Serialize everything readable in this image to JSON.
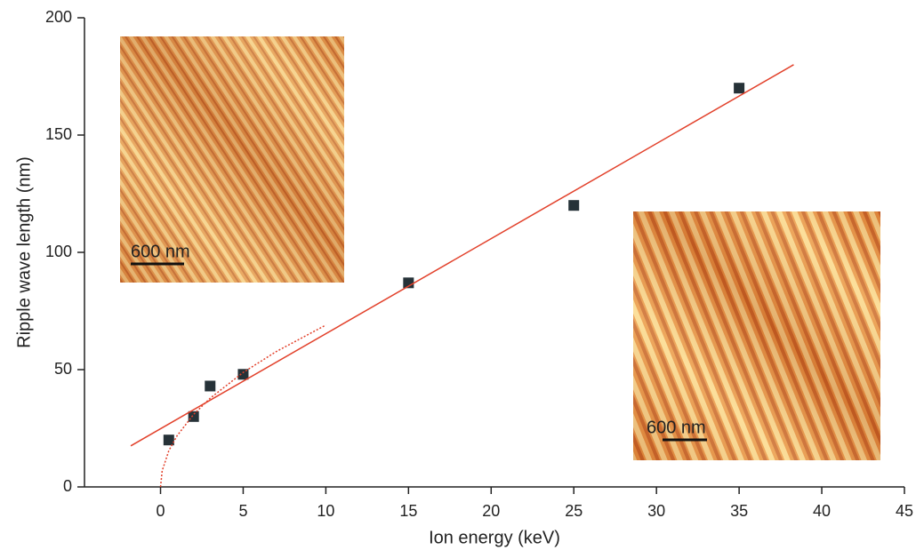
{
  "chart_data": {
    "type": "scatter",
    "x_label": "Ion energy (keV)",
    "y_label": "Ripple wave length (nm)",
    "xlim": [
      -4.6,
      45
    ],
    "ylim": [
      0,
      200
    ],
    "xticks": [
      0,
      5,
      10,
      15,
      20,
      25,
      30,
      35,
      40,
      45
    ],
    "yticks": [
      0,
      50,
      100,
      150,
      200
    ],
    "series": [
      {
        "type": "scatter",
        "color": "#263238",
        "x": [
          0.5,
          2,
          3,
          5,
          15,
          25,
          35
        ],
        "values": [
          20,
          30,
          43,
          48,
          87,
          120,
          170
        ]
      },
      {
        "type": "line",
        "color": "#e2412b",
        "x": [
          -1.8,
          38.3
        ],
        "values": [
          17.5,
          180
        ]
      },
      {
        "type": "line",
        "style": "dotted",
        "color": "#e2412b",
        "x": [
          0,
          0.1,
          0.5,
          1,
          2,
          3,
          5,
          7,
          10
        ],
        "values": [
          0,
          6.9,
          15.4,
          21.8,
          30.9,
          37.8,
          48.8,
          57.7,
          69
        ]
      }
    ],
    "insets": [
      {
        "label": "600 nm"
      },
      {
        "label": "600 nm"
      }
    ]
  }
}
